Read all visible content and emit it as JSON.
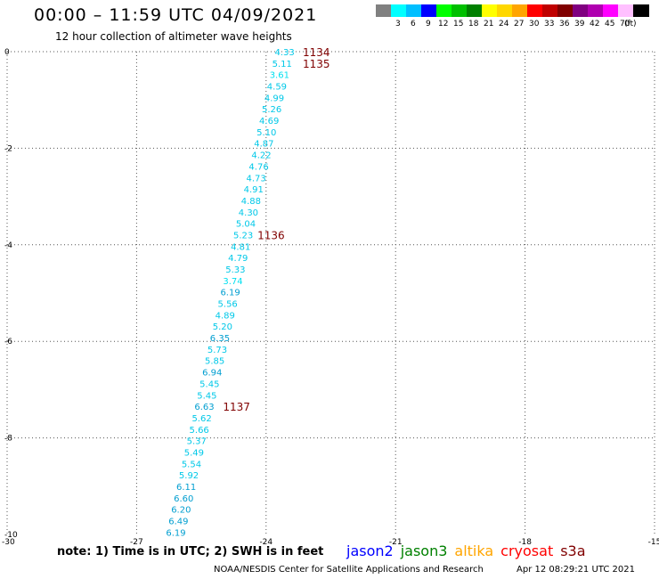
{
  "header": {
    "title": "00:00 – 11:59 UTC 04/09/2021",
    "subtitle": "12 hour collection of altimeter wave heights"
  },
  "legend": {
    "unit": "(ft)",
    "bins": [
      {
        "label": "",
        "color": "#808080"
      },
      {
        "label": "3",
        "color": "#00ffff"
      },
      {
        "label": "6",
        "color": "#00bfff"
      },
      {
        "label": "9",
        "color": "#0000ff"
      },
      {
        "label": "12",
        "color": "#00ff00"
      },
      {
        "label": "15",
        "color": "#00c000"
      },
      {
        "label": "18",
        "color": "#008000"
      },
      {
        "label": "21",
        "color": "#ffff00"
      },
      {
        "label": "24",
        "color": "#ffd700"
      },
      {
        "label": "27",
        "color": "#ffa500"
      },
      {
        "label": "30",
        "color": "#ff0000"
      },
      {
        "label": "33",
        "color": "#c00000"
      },
      {
        "label": "36",
        "color": "#800000"
      },
      {
        "label": "39",
        "color": "#800080"
      },
      {
        "label": "42",
        "color": "#b000b0"
      },
      {
        "label": "45",
        "color": "#ff00ff"
      },
      {
        "label": "70",
        "color": "#ffc0ff"
      },
      {
        "label": "",
        "color": "#000000"
      }
    ]
  },
  "footer": {
    "note": "note:  1) Time is in UTC;  2) SWH is in feet",
    "satellites": [
      {
        "name": "jason2",
        "color": "#0000ff"
      },
      {
        "name": "jason3",
        "color": "#008000"
      },
      {
        "name": "altika",
        "color": "#ffa500"
      },
      {
        "name": "cryosat",
        "color": "#ff0000"
      },
      {
        "name": "s3a",
        "color": "#800000"
      }
    ],
    "credit": "NOAA/NESDIS Center for Satellite Applications and Research",
    "timestamp": "Apr 12 08:29:21 UTC 2021"
  },
  "chart_data": {
    "type": "scatter",
    "title": "00:00 – 11:59 UTC 04/09/2021",
    "subtitle": "12 hour collection of altimeter wave heights",
    "xlim": [
      -30,
      -15
    ],
    "ylim": [
      -10,
      0
    ],
    "xticks": [
      {
        "v": -30,
        "label": "-30"
      },
      {
        "v": -27,
        "label": "-27"
      },
      {
        "v": -24,
        "label": "-24"
      },
      {
        "v": -21,
        "label": "-21"
      },
      {
        "v": -18,
        "label": "-18"
      },
      {
        "v": -15,
        "label": "-15"
      }
    ],
    "yticks": [
      {
        "v": 0,
        "label": "0"
      },
      {
        "v": -2,
        "label": "-2"
      },
      {
        "v": -4,
        "label": "-4"
      },
      {
        "v": -6,
        "label": "-6"
      },
      {
        "v": -8,
        "label": "-8"
      },
      {
        "v": -10,
        "label": "-10"
      }
    ],
    "grid": true,
    "grid_style": "dotted",
    "points": [
      {
        "x": -23.57,
        "y": 0.0,
        "label": "4.33",
        "color": "#00c8e8"
      },
      {
        "x": -23.63,
        "y": -0.24,
        "label": "5.11",
        "color": "#00c8e8"
      },
      {
        "x": -23.69,
        "y": -0.47,
        "label": "3.61",
        "color": "#00e0f0"
      },
      {
        "x": -23.75,
        "y": -0.71,
        "label": "4.59",
        "color": "#00c8e8"
      },
      {
        "x": -23.81,
        "y": -0.95,
        "label": "4.99",
        "color": "#00c8e8"
      },
      {
        "x": -23.87,
        "y": -1.18,
        "label": "5.26",
        "color": "#00c8e8"
      },
      {
        "x": -23.93,
        "y": -1.42,
        "label": "4.69",
        "color": "#00c8e8"
      },
      {
        "x": -23.99,
        "y": -1.66,
        "label": "5.10",
        "color": "#00c8e8"
      },
      {
        "x": -24.05,
        "y": -1.89,
        "label": "4.87",
        "color": "#00c8e8"
      },
      {
        "x": -24.11,
        "y": -2.13,
        "label": "4.22",
        "color": "#00c8e8"
      },
      {
        "x": -24.17,
        "y": -2.37,
        "label": "4.76",
        "color": "#00c8e8"
      },
      {
        "x": -24.23,
        "y": -2.61,
        "label": "4.73",
        "color": "#00c8e8"
      },
      {
        "x": -24.29,
        "y": -2.84,
        "label": "4.91",
        "color": "#00c8e8"
      },
      {
        "x": -24.35,
        "y": -3.08,
        "label": "4.88",
        "color": "#00c8e8"
      },
      {
        "x": -24.41,
        "y": -3.32,
        "label": "4.30",
        "color": "#00c8e8"
      },
      {
        "x": -24.47,
        "y": -3.55,
        "label": "5.04",
        "color": "#00c8e8"
      },
      {
        "x": -24.53,
        "y": -3.79,
        "label": "5.23",
        "color": "#00c8e8"
      },
      {
        "x": -24.59,
        "y": -4.03,
        "label": "4.81",
        "color": "#00c8e8"
      },
      {
        "x": -24.65,
        "y": -4.26,
        "label": "4.79",
        "color": "#00c8e8"
      },
      {
        "x": -24.71,
        "y": -4.5,
        "label": "5.33",
        "color": "#00c8e8"
      },
      {
        "x": -24.77,
        "y": -4.74,
        "label": "3.74",
        "color": "#00e0f0"
      },
      {
        "x": -24.83,
        "y": -4.97,
        "label": "6.19",
        "color": "#009ed0"
      },
      {
        "x": -24.89,
        "y": -5.21,
        "label": "5.56",
        "color": "#00c8e8"
      },
      {
        "x": -24.95,
        "y": -5.45,
        "label": "4.89",
        "color": "#00c8e8"
      },
      {
        "x": -25.01,
        "y": -5.68,
        "label": "5.20",
        "color": "#00c8e8"
      },
      {
        "x": -25.07,
        "y": -5.92,
        "label": "6.35",
        "color": "#009ed0"
      },
      {
        "x": -25.13,
        "y": -6.16,
        "label": "5.73",
        "color": "#00c8e8"
      },
      {
        "x": -25.19,
        "y": -6.39,
        "label": "5.85",
        "color": "#00c8e8"
      },
      {
        "x": -25.25,
        "y": -6.63,
        "label": "6.94",
        "color": "#009ed0"
      },
      {
        "x": -25.31,
        "y": -6.87,
        "label": "5.45",
        "color": "#00c8e8"
      },
      {
        "x": -25.37,
        "y": -7.11,
        "label": "5.45",
        "color": "#00c8e8"
      },
      {
        "x": -25.43,
        "y": -7.34,
        "label": "6.63",
        "color": "#009ed0"
      },
      {
        "x": -25.49,
        "y": -7.58,
        "label": "5.62",
        "color": "#00c8e8"
      },
      {
        "x": -25.55,
        "y": -7.82,
        "label": "5.66",
        "color": "#00c8e8"
      },
      {
        "x": -25.61,
        "y": -8.05,
        "label": "5.37",
        "color": "#00c8e8"
      },
      {
        "x": -25.67,
        "y": -8.29,
        "label": "5.49",
        "color": "#00c8e8"
      },
      {
        "x": -25.73,
        "y": -8.53,
        "label": "5.54",
        "color": "#00c8e8"
      },
      {
        "x": -25.79,
        "y": -8.76,
        "label": "5.92",
        "color": "#00c8e8"
      },
      {
        "x": -25.85,
        "y": -9.0,
        "label": "6.11",
        "color": "#009ed0"
      },
      {
        "x": -25.91,
        "y": -9.24,
        "label": "6.60",
        "color": "#009ed0"
      },
      {
        "x": -25.97,
        "y": -9.47,
        "label": "6.20",
        "color": "#009ed0"
      },
      {
        "x": -26.03,
        "y": -9.71,
        "label": "6.49",
        "color": "#009ed0"
      },
      {
        "x": -26.09,
        "y": -9.95,
        "label": "6.19",
        "color": "#009ed0"
      }
    ],
    "time_labels": [
      {
        "x": -23.15,
        "y": 0.0,
        "label": "1134",
        "color": "#800000"
      },
      {
        "x": -23.15,
        "y": -0.24,
        "label": "1135",
        "color": "#800000"
      },
      {
        "x": -24.2,
        "y": -3.79,
        "label": "1136",
        "color": "#800000"
      },
      {
        "x": -25.0,
        "y": -7.34,
        "label": "1137",
        "color": "#800000"
      }
    ]
  }
}
